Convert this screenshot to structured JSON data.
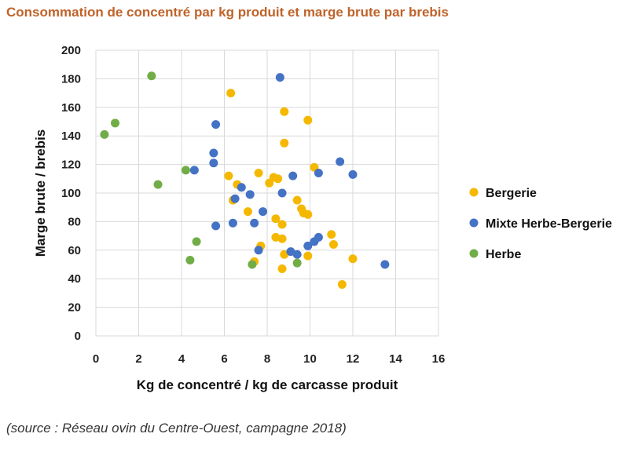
{
  "chart_data": {
    "type": "scatter",
    "title": "Consommation de concentré par kg produit et marge brute par brebis",
    "xlabel": "Kg de concentré / kg de carcasse produit",
    "ylabel": "Marge brute / brebis",
    "xlim": [
      0,
      16
    ],
    "ylim": [
      0,
      200
    ],
    "x_ticks": [
      "0",
      "2",
      "4",
      "6",
      "8",
      "10",
      "12",
      "14",
      "16"
    ],
    "y_ticks": [
      "0",
      "20",
      "40",
      "60",
      "80",
      "100",
      "120",
      "140",
      "160",
      "180",
      "200"
    ],
    "grid": true,
    "legend_position": "right",
    "series": [
      {
        "name": "Bergerie",
        "color": "#f5b800",
        "points": [
          [
            6.3,
            170
          ],
          [
            8.8,
            157
          ],
          [
            9.9,
            151
          ],
          [
            8.8,
            135
          ],
          [
            6.2,
            112
          ],
          [
            7.6,
            114
          ],
          [
            10.2,
            118
          ],
          [
            6.6,
            106
          ],
          [
            8.5,
            110
          ],
          [
            8.3,
            111
          ],
          [
            8.1,
            107
          ],
          [
            6.4,
            95
          ],
          [
            7.1,
            87
          ],
          [
            9.4,
            95
          ],
          [
            9.6,
            89
          ],
          [
            9.7,
            86
          ],
          [
            9.9,
            85
          ],
          [
            8.4,
            82
          ],
          [
            8.7,
            78
          ],
          [
            8.4,
            69
          ],
          [
            8.7,
            68
          ],
          [
            7.7,
            63
          ],
          [
            11.0,
            71
          ],
          [
            11.1,
            64
          ],
          [
            7.4,
            52
          ],
          [
            8.8,
            57
          ],
          [
            9.9,
            56
          ],
          [
            8.7,
            47
          ],
          [
            12.0,
            54
          ],
          [
            11.5,
            36
          ]
        ]
      },
      {
        "name": "Mixte Herbe-Bergerie",
        "color": "#4472c4",
        "points": [
          [
            8.6,
            181
          ],
          [
            5.6,
            148
          ],
          [
            5.5,
            128
          ],
          [
            5.5,
            121
          ],
          [
            4.6,
            116
          ],
          [
            11.4,
            122
          ],
          [
            9.2,
            112
          ],
          [
            10.4,
            114
          ],
          [
            12.0,
            113
          ],
          [
            6.8,
            104
          ],
          [
            7.2,
            99
          ],
          [
            6.5,
            96
          ],
          [
            8.7,
            100
          ],
          [
            7.8,
            87
          ],
          [
            6.4,
            79
          ],
          [
            7.4,
            79
          ],
          [
            5.6,
            77
          ],
          [
            10.4,
            69
          ],
          [
            10.2,
            66
          ],
          [
            9.9,
            63
          ],
          [
            9.1,
            59
          ],
          [
            9.4,
            57
          ],
          [
            7.6,
            60
          ],
          [
            13.5,
            50
          ]
        ]
      },
      {
        "name": "Herbe",
        "color": "#70ad47",
        "points": [
          [
            2.6,
            182
          ],
          [
            0.9,
            149
          ],
          [
            0.4,
            141
          ],
          [
            4.2,
            116
          ],
          [
            2.9,
            106
          ],
          [
            4.7,
            66
          ],
          [
            4.4,
            53
          ],
          [
            7.3,
            50
          ],
          [
            9.4,
            51
          ]
        ]
      }
    ]
  },
  "source": "(source : Réseau ovin du Centre-Ouest, campagne 2018)"
}
